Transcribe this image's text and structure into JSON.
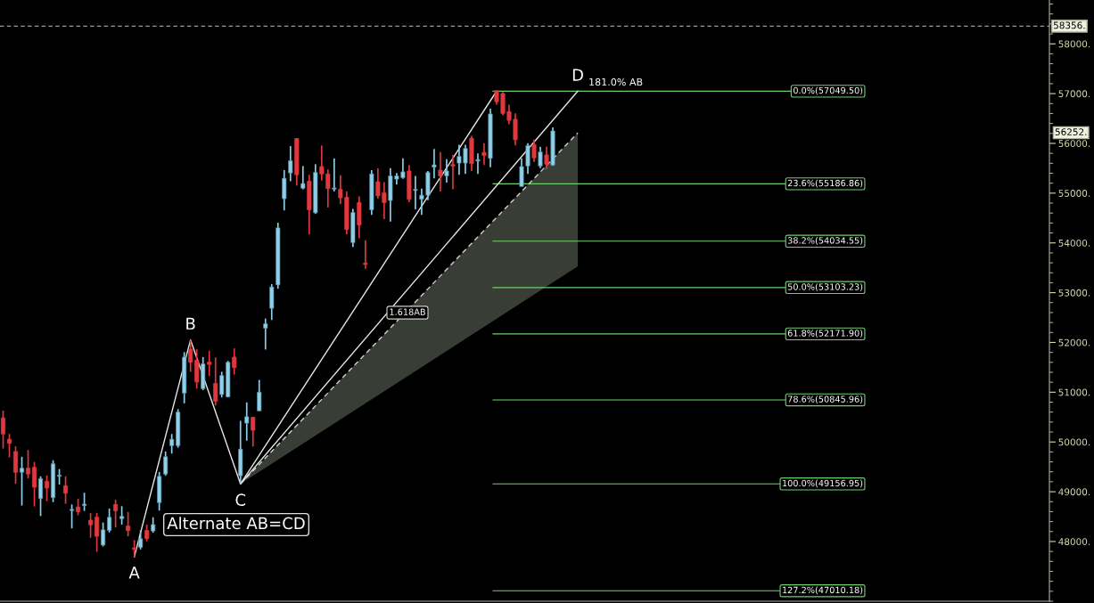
{
  "chart_data": {
    "type": "candlestick",
    "categories": [
      null,
      null,
      null,
      null,
      null,
      null,
      null,
      null,
      null,
      null,
      null,
      null,
      null,
      null,
      null,
      null,
      null,
      null,
      null,
      null,
      null,
      null,
      null,
      null,
      null,
      null,
      null,
      null,
      null,
      null,
      null,
      null,
      null,
      null,
      null,
      null,
      null,
      null,
      null,
      null,
      null,
      null,
      null,
      null,
      null,
      null,
      null,
      null,
      null,
      null,
      null,
      null,
      null,
      null,
      null,
      null,
      null,
      null,
      null,
      null,
      null,
      null,
      null,
      null,
      null,
      null,
      null,
      null,
      null,
      null,
      null,
      null,
      null,
      null,
      null,
      null,
      null,
      null,
      null,
      null,
      null,
      null,
      null,
      null,
      null,
      null,
      null,
      null,
      null,
      null,
      null,
      null,
      null,
      null,
      null,
      null,
      null,
      null,
      null,
      null,
      null,
      null,
      null,
      null,
      null,
      null,
      null,
      null,
      null,
      null,
      null,
      null,
      null,
      null,
      null,
      null,
      null,
      null,
      null,
      null,
      null,
      null,
      null,
      null,
      null,
      null,
      null,
      null,
      null,
      null,
      null,
      null,
      null,
      null,
      null,
      null,
      null,
      null,
      null,
      null,
      null,
      null,
      null,
      null,
      null,
      null,
      null,
      null,
      null,
      null,
      null,
      null,
      null,
      null,
      null,
      null,
      null,
      null,
      null,
      null,
      null,
      null,
      null,
      null,
      null,
      null,
      null,
      null
    ],
    "ohlc": [
      [
        50484,
        50630,
        49867,
        50161
      ],
      [
        50055,
        50161,
        49691,
        49973
      ],
      [
        49808,
        49914,
        49162,
        49391
      ],
      [
        49391,
        49703,
        48722,
        49474
      ],
      [
        49474,
        49838,
        49268,
        49356
      ],
      [
        49491,
        49597,
        48704,
        49092
      ],
      [
        48863,
        49309,
        48511,
        49262
      ],
      [
        49209,
        49327,
        48810,
        49074
      ],
      [
        48881,
        49632,
        48792,
        49562
      ],
      [
        49309,
        49456,
        49145,
        49333
      ],
      [
        49121,
        49309,
        48757,
        48969
      ],
      [
        48622,
        48745,
        48264,
        48646
      ],
      [
        48693,
        48857,
        48528,
        48599
      ],
      [
        48722,
        48980,
        48616,
        48751
      ],
      [
        48428,
        48569,
        48076,
        48334
      ],
      [
        48487,
        48575,
        47794,
        48105
      ],
      [
        47929,
        48381,
        47900,
        48235
      ],
      [
        48223,
        48663,
        48182,
        48487
      ],
      [
        48745,
        48839,
        48282,
        48616
      ],
      [
        48458,
        48710,
        48340,
        48505
      ],
      [
        48311,
        48593,
        48105,
        48217
      ],
      [
        47871,
        48029,
        47694,
        47841
      ],
      [
        47882,
        48223,
        47841,
        48058
      ],
      [
        48223,
        48340,
        48006,
        48058
      ],
      [
        48211,
        48487,
        48176,
        48340
      ],
      [
        48781,
        49397,
        48622,
        49309
      ],
      [
        49356,
        49808,
        49321,
        49703
      ],
      [
        49926,
        50161,
        49767,
        50055
      ],
      [
        49926,
        50660,
        49885,
        50601
      ],
      [
        50983,
        51805,
        50777,
        51705
      ],
      [
        51864,
        52052,
        51412,
        51600
      ],
      [
        51641,
        51864,
        51071,
        51206
      ],
      [
        51071,
        51705,
        51042,
        51570
      ],
      [
        51605,
        51834,
        51324,
        51558
      ],
      [
        51177,
        51700,
        50731,
        50819
      ],
      [
        50954,
        51412,
        50895,
        51335
      ],
      [
        50907,
        51629,
        50895,
        51600
      ],
      [
        51705,
        51881,
        51353,
        51494
      ],
      [
        49321,
        50425,
        49157,
        49856
      ],
      [
        50378,
        50795,
        50026,
        50507
      ],
      [
        50496,
        50496,
        49908,
        50237
      ],
      [
        50625,
        51247,
        50625,
        51001
      ],
      [
        52287,
        52480,
        51858,
        52375
      ],
      [
        52686,
        53173,
        52451,
        53114
      ],
      [
        53156,
        54406,
        53079,
        54301
      ],
      [
        54888,
        55463,
        54653,
        55299
      ],
      [
        55405,
        55945,
        55240,
        55651
      ],
      [
        56098,
        56098,
        55152,
        55369
      ],
      [
        55099,
        55546,
        55076,
        55193
      ],
      [
        55240,
        55369,
        54171,
        54665
      ],
      [
        54606,
        55581,
        54583,
        55416
      ],
      [
        55534,
        55957,
        55252,
        55387
      ],
      [
        55387,
        55475,
        54712,
        55093
      ],
      [
        55082,
        55698,
        55035,
        55105
      ],
      [
        55076,
        55358,
        54782,
        54906
      ],
      [
        54917,
        55035,
        54171,
        54272
      ],
      [
        54007,
        54682,
        53919,
        54612
      ],
      [
        54812,
        54935,
        54095,
        54359
      ],
      [
        53596,
        54054,
        53479,
        53567
      ],
      [
        54665,
        55463,
        54565,
        55387
      ],
      [
        55229,
        55499,
        54888,
        54947
      ],
      [
        55005,
        55223,
        54477,
        54812
      ],
      [
        54853,
        55505,
        54430,
        55346
      ],
      [
        55281,
        55405,
        55170,
        55346
      ],
      [
        55311,
        55698,
        55287,
        55428
      ],
      [
        55446,
        55564,
        54818,
        54876
      ],
      [
        55052,
        55346,
        54677,
        55076
      ],
      [
        54876,
        55093,
        54565,
        54958
      ],
      [
        54958,
        55446,
        54859,
        55416
      ],
      [
        55522,
        55886,
        55299,
        55569
      ],
      [
        55463,
        55827,
        55035,
        55346
      ],
      [
        55346,
        55681,
        55211,
        55446
      ],
      [
        55575,
        55769,
        55076,
        55546
      ],
      [
        55604,
        55974,
        55369,
        55739
      ],
      [
        55604,
        55974,
        55387,
        55898
      ],
      [
        56103,
        56150,
        55446,
        55593
      ],
      [
        55645,
        55798,
        55387,
        55675
      ],
      [
        55816,
        56004,
        55564,
        55757
      ],
      [
        55698,
        56697,
        55522,
        56591
      ],
      [
        57049,
        57049,
        56779,
        56837
      ],
      [
        57002,
        57031,
        56562,
        56603
      ],
      [
        56638,
        56779,
        56385,
        56462
      ],
      [
        56485,
        56603,
        55957,
        56074
      ],
      [
        55134,
        55698,
        55134,
        55534
      ],
      [
        55546,
        56004,
        55387,
        55957
      ],
      [
        55974,
        56074,
        55622,
        55710
      ],
      [
        55546,
        55933,
        55504,
        55827
      ],
      [
        55769,
        55933,
        55487,
        55581
      ],
      [
        55563,
        56321,
        55546,
        56250
      ],
      null,
      null,
      null,
      null,
      null,
      null,
      null,
      null,
      null,
      null,
      null,
      null,
      null,
      null,
      null,
      null,
      null,
      null,
      null,
      null,
      null,
      null,
      null,
      null,
      null,
      null,
      null,
      null,
      null,
      null,
      null,
      null,
      null,
      null,
      null,
      null,
      null,
      null,
      null,
      null,
      null,
      null,
      null,
      null,
      null,
      null,
      null,
      null,
      null,
      null,
      null,
      null,
      null,
      null,
      null,
      null,
      null,
      null,
      null,
      null,
      null,
      null,
      null,
      null,
      null,
      null,
      null,
      null,
      null,
      null,
      null,
      null,
      null,
      null,
      null,
      null,
      null,
      null,
      null
    ],
    "series": [
      {
        "type": "line",
        "color": "#d0d0d0",
        "line_style": "dashed",
        "values": [
          null,
          null,
          null,
          null,
          null,
          null,
          null,
          null,
          null,
          null,
          null,
          null,
          null,
          null,
          null,
          null,
          null,
          null,
          null,
          null,
          null,
          null,
          null,
          null,
          null,
          null,
          null,
          null,
          null,
          null,
          null,
          null,
          null,
          null,
          null,
          null,
          null,
          null,
          49157,
          null,
          null,
          null,
          null,
          null,
          null,
          null,
          null,
          null,
          null,
          null,
          null,
          null,
          null,
          null,
          null,
          null,
          null,
          null,
          null,
          null,
          null,
          null,
          null,
          null,
          null,
          null,
          null,
          null,
          null,
          null,
          null,
          null,
          null,
          null,
          null,
          null,
          null,
          null,
          null,
          null,
          null,
          null,
          null,
          null,
          null,
          null,
          null,
          null,
          null,
          null,
          null,
          null,
          56210,
          null,
          null,
          null,
          null,
          null,
          null,
          null,
          null,
          null,
          null,
          null,
          null,
          null,
          null,
          null,
          null,
          null,
          null,
          null,
          null,
          null,
          null,
          null,
          null,
          null,
          null,
          null,
          null,
          null,
          null,
          null,
          null,
          null,
          null,
          null,
          null,
          null,
          null,
          null,
          null,
          null,
          null,
          null,
          null,
          null,
          null,
          null,
          null,
          null,
          null,
          null,
          null,
          null,
          null,
          null,
          null,
          null,
          null,
          null,
          null,
          null,
          null,
          null,
          null,
          null,
          null,
          null,
          null,
          null,
          null,
          null,
          null,
          null,
          null,
          null
        ],
        "upper": [
          null,
          null,
          null,
          null,
          null,
          null,
          null,
          null,
          null,
          null,
          null,
          null,
          null,
          null,
          null,
          null,
          null,
          null,
          null,
          null,
          null,
          null,
          null,
          null,
          null,
          null,
          null,
          null,
          null,
          null,
          null,
          null,
          null,
          null,
          null,
          null,
          null,
          null,
          49157,
          null,
          null,
          null,
          null,
          null,
          null,
          null,
          null,
          null,
          null,
          null,
          null,
          null,
          null,
          null,
          null,
          null,
          null,
          null,
          null,
          null,
          null,
          null,
          null,
          null,
          null,
          null,
          null,
          null,
          null,
          null,
          null,
          null,
          null,
          null,
          null,
          null,
          null,
          null,
          null,
          null,
          null,
          null,
          null,
          null,
          null,
          null,
          null,
          null,
          null,
          null,
          null,
          null,
          56210,
          null,
          null,
          null,
          null,
          null,
          null,
          null,
          null,
          null,
          null,
          null,
          null,
          null,
          null,
          null,
          null,
          null,
          null,
          null,
          null,
          null,
          null,
          null,
          null,
          null,
          null,
          null,
          null,
          null,
          null,
          null,
          null,
          null,
          null,
          null,
          null,
          null,
          null,
          null,
          null,
          null,
          null,
          null,
          null,
          null,
          null,
          null,
          null,
          null,
          null,
          null,
          null,
          null,
          null,
          null,
          null,
          null,
          null,
          null,
          null,
          null,
          null,
          null,
          null,
          null,
          null,
          null,
          null,
          null,
          null,
          null,
          null,
          null,
          null,
          null
        ],
        "lower": [
          null,
          null,
          null,
          null,
          null,
          null,
          null,
          null,
          null,
          null,
          null,
          null,
          null,
          null,
          null,
          null,
          null,
          null,
          null,
          null,
          null,
          null,
          null,
          null,
          null,
          null,
          null,
          null,
          null,
          null,
          null,
          null,
          null,
          null,
          null,
          null,
          null,
          null,
          49157,
          null,
          null,
          null,
          null,
          null,
          null,
          null,
          null,
          null,
          null,
          null,
          null,
          null,
          null,
          null,
          null,
          null,
          null,
          null,
          null,
          null,
          null,
          null,
          null,
          null,
          null,
          null,
          null,
          null,
          null,
          null,
          null,
          null,
          null,
          null,
          null,
          null,
          null,
          null,
          null,
          null,
          null,
          null,
          null,
          null,
          null,
          null,
          null,
          null,
          null,
          null,
          null,
          null,
          53530,
          null,
          null,
          null,
          null,
          null,
          null,
          null,
          null,
          null,
          null,
          null,
          null,
          null,
          null,
          null,
          null,
          null,
          null,
          null,
          null,
          null,
          null,
          null,
          null,
          null,
          null,
          null,
          null,
          null,
          null,
          null,
          null,
          null,
          null,
          null,
          null,
          null,
          null,
          null,
          null,
          null,
          null,
          null,
          null,
          null,
          null,
          null,
          null,
          null,
          null,
          null,
          null,
          null,
          null,
          null,
          null,
          null,
          null,
          null,
          null,
          null,
          null,
          null,
          null,
          null,
          null,
          null,
          null,
          null,
          null,
          null,
          null,
          null,
          null,
          null
        ]
      },
      {
        "type": "line",
        "color": "#e6e6e6",
        "line_style": "solid",
        "values": [
          null,
          null,
          null,
          null,
          null,
          null,
          null,
          null,
          null,
          null,
          null,
          null,
          null,
          null,
          null,
          null,
          null,
          null,
          null,
          null,
          null,
          null,
          null,
          null,
          null,
          null,
          null,
          null,
          null,
          null,
          null,
          null,
          null,
          null,
          null,
          null,
          null,
          null,
          49157,
          null,
          null,
          null,
          null,
          null,
          null,
          null,
          null,
          null,
          null,
          null,
          null,
          null,
          null,
          null,
          null,
          null,
          null,
          null,
          null,
          null,
          null,
          null,
          null,
          null,
          null,
          null,
          null,
          null,
          null,
          null,
          null,
          null,
          null,
          null,
          null,
          null,
          null,
          null,
          null,
          57049.5,
          null,
          null,
          null,
          null,
          null,
          null,
          null,
          null,
          null,
          null,
          null,
          null,
          null,
          null,
          null,
          null,
          null,
          null,
          null,
          null,
          null,
          null,
          null,
          null,
          null,
          null,
          null,
          null,
          null,
          null,
          null,
          null,
          null,
          null,
          null,
          null,
          null,
          null,
          null,
          null,
          null,
          null,
          null,
          null,
          null,
          null,
          null,
          null,
          null,
          null,
          null,
          null,
          null,
          null,
          null,
          null,
          null,
          null,
          null,
          null,
          null,
          null,
          null,
          null,
          null,
          null,
          null,
          null,
          null,
          null,
          null,
          null,
          null,
          null,
          null,
          null,
          null,
          null,
          null,
          null,
          null,
          null,
          null,
          null,
          null,
          null,
          null,
          null
        ]
      },
      {
        "type": "line",
        "color": "#e6e6e6",
        "line_style": "solid",
        "values": [
          null,
          null,
          null,
          null,
          null,
          null,
          null,
          null,
          null,
          null,
          null,
          null,
          null,
          null,
          null,
          null,
          null,
          null,
          null,
          null,
          null,
          47694,
          null,
          null,
          null,
          null,
          null,
          null,
          null,
          null,
          52052,
          null,
          null,
          null,
          null,
          null,
          null,
          null,
          49157,
          null,
          null,
          null,
          null,
          null,
          null,
          null,
          null,
          null,
          null,
          null,
          null,
          null,
          null,
          null,
          null,
          null,
          null,
          null,
          null,
          null,
          null,
          null,
          null,
          null,
          null,
          null,
          null,
          null,
          null,
          null,
          null,
          null,
          null,
          null,
          null,
          null,
          null,
          null,
          null,
          null,
          null,
          null,
          null,
          null,
          null,
          null,
          null,
          null,
          null,
          null,
          null,
          null,
          57049.5,
          null,
          null,
          null,
          null,
          null,
          null,
          null,
          null,
          null,
          null,
          null,
          null,
          null,
          null,
          null,
          null,
          null,
          null,
          null,
          null,
          null,
          null,
          null,
          null,
          null,
          null,
          null,
          null,
          null,
          null,
          null,
          null,
          null,
          null,
          null,
          null,
          null,
          null,
          null,
          null,
          null,
          null,
          null,
          null,
          null,
          null,
          null,
          null,
          null,
          null,
          null,
          null,
          null,
          null,
          null,
          null,
          null,
          null,
          null,
          null,
          null,
          null,
          null,
          null,
          null,
          null,
          null,
          null,
          null,
          null,
          null,
          null,
          null,
          null,
          null
        ],
        "value_labels": [
          null,
          null,
          null,
          null,
          null,
          null,
          null,
          null,
          null,
          null,
          null,
          null,
          null,
          null,
          null,
          null,
          null,
          null,
          null,
          null,
          null,
          "A",
          null,
          null,
          null,
          null,
          null,
          null,
          null,
          null,
          "B",
          null,
          null,
          null,
          null,
          null,
          null,
          null,
          "C",
          null,
          null,
          null,
          null,
          null,
          null,
          null,
          null,
          null,
          null,
          null,
          null,
          null,
          null,
          null,
          null,
          null,
          null,
          null,
          null,
          null,
          null,
          null,
          null,
          null,
          null,
          null,
          null,
          null,
          null,
          null,
          null,
          null,
          null,
          null,
          null,
          null,
          null,
          null,
          null,
          null,
          null,
          null,
          null,
          null,
          null,
          null,
          null,
          null,
          null,
          null,
          null,
          null,
          "D",
          null,
          null,
          null,
          null,
          null,
          null,
          null,
          null,
          null,
          null,
          null,
          null,
          null,
          null,
          null,
          null,
          null,
          null,
          null,
          null,
          null,
          null,
          null,
          null,
          null,
          null,
          null,
          null,
          null,
          null,
          null,
          null,
          null,
          null,
          null,
          null,
          null,
          null,
          null,
          null,
          null,
          null,
          null,
          null,
          null,
          null,
          null,
          null,
          null,
          null,
          null,
          null,
          null,
          null,
          null,
          null,
          null,
          null,
          null,
          null,
          null,
          null,
          null,
          null,
          null,
          null,
          null,
          null,
          null,
          null,
          null,
          null,
          null,
          null,
          null
        ]
      }
    ],
    "ylim": [
      46800,
      58881
    ],
    "yticks": [
      {
        "value": 48000,
        "label": "48000."
      },
      {
        "value": 49000,
        "label": "49000."
      },
      {
        "value": 50000,
        "label": "50000."
      },
      {
        "value": 51000,
        "label": "51000."
      },
      {
        "value": 52000,
        "label": "52000."
      },
      {
        "value": 53000,
        "label": "53000."
      },
      {
        "value": 54000,
        "label": "54000."
      },
      {
        "value": 55000,
        "label": "55000."
      },
      {
        "value": 56000,
        "label": "56000."
      },
      {
        "value": 57000,
        "label": "57000."
      },
      {
        "value": 58000,
        "label": "58000."
      }
    ],
    "tick_labels": "y",
    "ref_lines": [
      {
        "axis": "y",
        "value": 58356,
        "label": "58356.",
        "color": "#9a9a9a",
        "line_style": "dashed"
      },
      {
        "axis": "y",
        "value": 57049.5,
        "label": "0.0%(57049.50)",
        "color": "#6fcf6f"
      },
      {
        "axis": "y",
        "value": 55186.86,
        "label": "23.6%(55186.86)",
        "color": "#6fcf6f"
      },
      {
        "axis": "y",
        "value": 54034.55,
        "label": "38.2%(54034.55)",
        "color": "#6fcf6f"
      },
      {
        "axis": "y",
        "value": 53103.23,
        "label": "50.0%(53103.23)",
        "color": "#6fcf6f"
      },
      {
        "axis": "y",
        "value": 52171.9,
        "label": "61.8%(52171.90)",
        "color": "#6fcf6f"
      },
      {
        "axis": "y",
        "value": 50845.96,
        "label": "78.6%(50845.96)",
        "color": "#6fcf6f"
      },
      {
        "axis": "y",
        "value": 49156.95,
        "label": "100.0%(49156.95)",
        "color": "#6fcf6f"
      },
      {
        "axis": "y",
        "value": 47010.18,
        "label": "127.2%(47010.18)",
        "color": "#6fcf6f"
      }
    ],
    "annotations": [
      "181.0% AB",
      "1.618AB",
      "Alternate AB=CD",
      "56252."
    ]
  }
}
